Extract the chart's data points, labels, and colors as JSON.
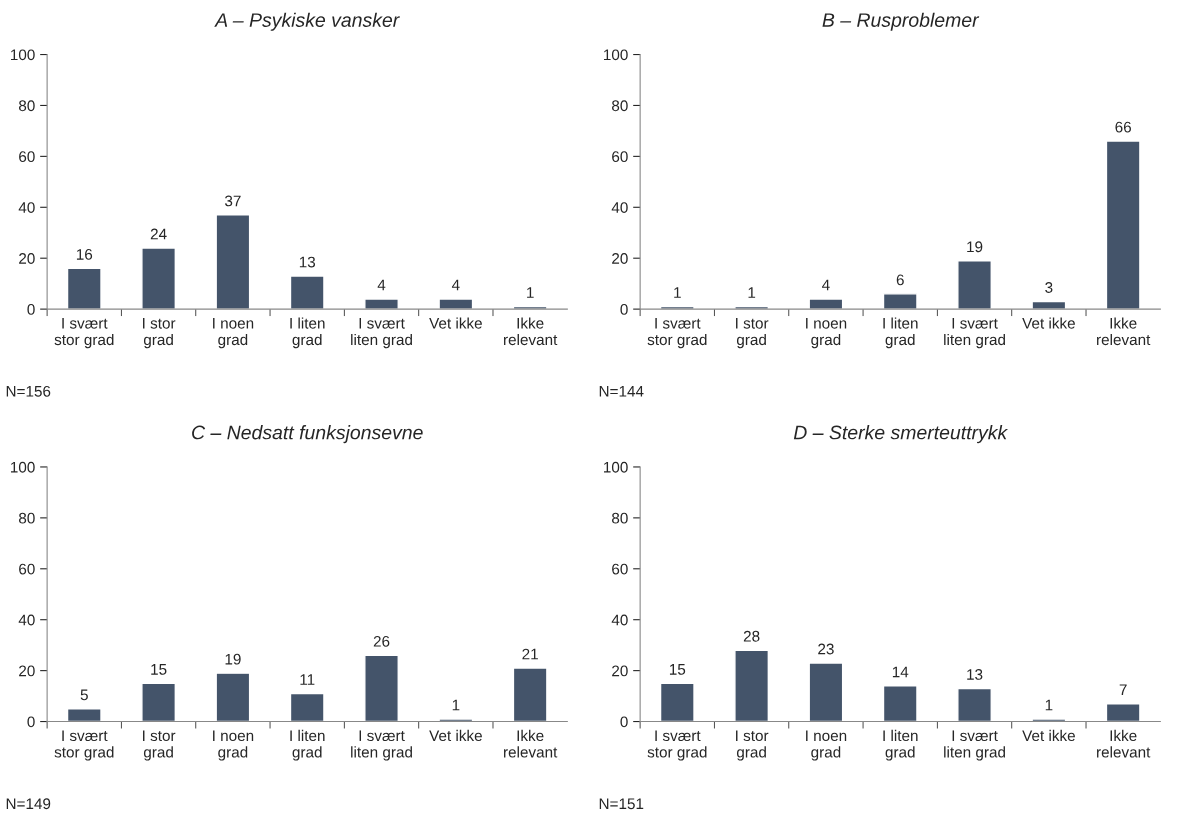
{
  "chart_data": [
    {
      "type": "bar",
      "title": "A – Psykiske vansker",
      "categories": [
        "I svært\nstor grad",
        "I stor\ngrad",
        "I noen\ngrad",
        "I liten\ngrad",
        "I svært\nliten grad",
        "Vet ikke",
        "Ikke\nrelevant"
      ],
      "values": [
        16,
        24,
        37,
        13,
        4,
        4,
        1
      ],
      "color": "#44546a",
      "ylim": [
        0,
        100
      ],
      "yticks": [
        0,
        20,
        40,
        60,
        80,
        100
      ],
      "data_labels": true,
      "grid": false,
      "legend": false,
      "annotations": [
        "N=156"
      ]
    },
    {
      "type": "bar",
      "title": "B – Rusproblemer",
      "categories": [
        "I svært\nstor grad",
        "I stor\ngrad",
        "I noen\ngrad",
        "I liten\ngrad",
        "I svært\nliten grad",
        "Vet ikke",
        "Ikke\nrelevant"
      ],
      "values": [
        1,
        1,
        4,
        6,
        19,
        3,
        66
      ],
      "color": "#44546a",
      "ylim": [
        0,
        100
      ],
      "yticks": [
        0,
        20,
        40,
        60,
        80,
        100
      ],
      "data_labels": true,
      "grid": false,
      "legend": false,
      "annotations": [
        "N=144"
      ]
    },
    {
      "type": "bar",
      "title": "C – Nedsatt funksjonsevne",
      "categories": [
        "I svært\nstor grad",
        "I stor\ngrad",
        "I noen\ngrad",
        "I liten\ngrad",
        "I svært\nliten grad",
        "Vet ikke",
        "Ikke\nrelevant"
      ],
      "values": [
        5,
        15,
        19,
        11,
        26,
        1,
        21
      ],
      "color": "#44546a",
      "ylim": [
        0,
        100
      ],
      "yticks": [
        0,
        20,
        40,
        60,
        80,
        100
      ],
      "data_labels": true,
      "grid": false,
      "legend": false,
      "annotations": [
        "N=149"
      ]
    },
    {
      "type": "bar",
      "title": "D – Sterke smerteuttrykk",
      "categories": [
        "I svært\nstor grad",
        "I stor\ngrad",
        "I noen\ngrad",
        "I liten\ngrad",
        "I svært\nliten grad",
        "Vet ikke",
        "Ikke\nrelevant"
      ],
      "values": [
        15,
        28,
        23,
        14,
        13,
        1,
        7
      ],
      "color": "#44546a",
      "ylim": [
        0,
        100
      ],
      "yticks": [
        0,
        20,
        40,
        60,
        80,
        100
      ],
      "data_labels": true,
      "grid": false,
      "legend": false,
      "annotations": [
        "N=151"
      ]
    }
  ]
}
